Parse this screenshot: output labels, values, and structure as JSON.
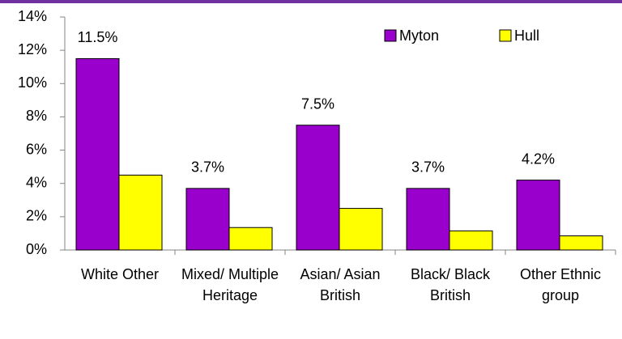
{
  "chart_data": {
    "type": "bar",
    "categories": [
      "White Other",
      "Mixed/ Multiple Heritage",
      "Asian/ Asian British",
      "Black/ Black British",
      "Other Ethnic group"
    ],
    "series": [
      {
        "name": "Myton",
        "color": "#9900cc",
        "values": [
          11.5,
          3.7,
          7.5,
          3.7,
          4.2
        ],
        "value_labels": [
          "11.5%",
          "3.7%",
          "7.5%",
          "3.7%",
          "4.2%"
        ]
      },
      {
        "name": "Hull",
        "color": "#ffff00",
        "values": [
          4.5,
          1.35,
          2.5,
          1.15,
          0.85
        ]
      }
    ],
    "ylim": [
      0,
      14
    ],
    "yticks": [
      {
        "value": 0,
        "label": "0%"
      },
      {
        "value": 2,
        "label": "2%"
      },
      {
        "value": 4,
        "label": "4%"
      },
      {
        "value": 6,
        "label": "6%"
      },
      {
        "value": 8,
        "label": "8%"
      },
      {
        "value": 10,
        "label": "10%"
      },
      {
        "value": 12,
        "label": "12%"
      },
      {
        "value": 14,
        "label": "14%"
      }
    ],
    "grid": false,
    "legend": "top-right"
  }
}
